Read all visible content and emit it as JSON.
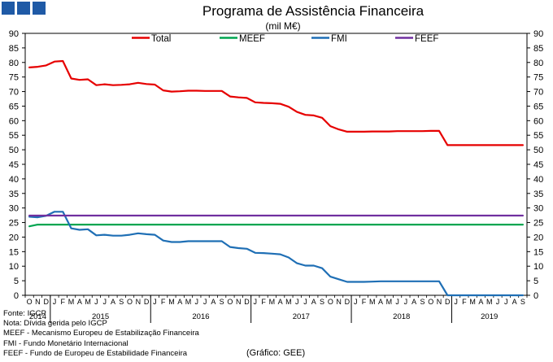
{
  "logo": "logo-squares",
  "title": "Programa de Assistência Financeira",
  "subtitle": "(mil M€)",
  "notes": [
    "Fonte: IGCP",
    "Nota: Dívida gerida pelo IGCP",
    "MEEF - Mecanismo Europeu de Estabilização Financeira",
    "FMI - Fundo Monetário Internacional",
    "FEEF - Fundo de Europeu de Estabilidade Financeira"
  ],
  "credit": "(Gráfico: GEE)",
  "chart_data": {
    "type": "line",
    "ylim": [
      0,
      90
    ],
    "yticks": [
      0,
      5,
      10,
      15,
      20,
      25,
      30,
      35,
      40,
      45,
      50,
      55,
      60,
      65,
      70,
      75,
      80,
      85,
      90
    ],
    "month_labels": [
      "O",
      "N",
      "D",
      "J",
      "F",
      "M",
      "A",
      "M",
      "J",
      "J",
      "A",
      "S",
      "O",
      "N",
      "D",
      "J",
      "F",
      "M",
      "A",
      "M",
      "J",
      "J",
      "A",
      "S",
      "O",
      "N",
      "D",
      "J",
      "F",
      "M",
      "A",
      "M",
      "J",
      "J",
      "A",
      "S",
      "O",
      "N",
      "D",
      "J",
      "F",
      "M",
      "A",
      "M",
      "J",
      "J",
      "A",
      "S",
      "O",
      "N",
      "D",
      "J",
      "F",
      "M",
      "A",
      "M",
      "J",
      "J",
      "A",
      "S"
    ],
    "year_labels": [
      {
        "label": "2014",
        "first_month": 0,
        "last_month": 2
      },
      {
        "label": "2015",
        "first_month": 3,
        "last_month": 14
      },
      {
        "label": "2016",
        "first_month": 15,
        "last_month": 26
      },
      {
        "label": "2017",
        "first_month": 27,
        "last_month": 38
      },
      {
        "label": "2018",
        "first_month": 39,
        "last_month": 50
      },
      {
        "label": "2019",
        "first_month": 51,
        "last_month": 59
      }
    ],
    "grid": false,
    "legend": "top",
    "series": [
      {
        "name": "Total",
        "color": "#e60000",
        "values": [
          78.3,
          78.5,
          79.0,
          80.3,
          80.5,
          74.5,
          74.0,
          74.2,
          72.2,
          72.5,
          72.2,
          72.3,
          72.5,
          73.0,
          72.6,
          72.4,
          70.4,
          70.0,
          70.1,
          70.3,
          70.3,
          70.2,
          70.2,
          70.2,
          68.3,
          68.0,
          67.8,
          66.3,
          66.1,
          66.0,
          65.8,
          64.8,
          63.0,
          62.0,
          61.8,
          61.0,
          58.1,
          57.0,
          56.2,
          56.2,
          56.2,
          56.3,
          56.3,
          56.3,
          56.4,
          56.4,
          56.4,
          56.4,
          56.5,
          56.5,
          51.6,
          51.6,
          51.6,
          51.6,
          51.6,
          51.6,
          51.6,
          51.6,
          51.6,
          51.6
        ]
      },
      {
        "name": "MEEF",
        "color": "#00a550",
        "values": [
          23.7,
          24.3,
          24.3,
          24.3,
          24.3,
          24.3,
          24.3,
          24.3,
          24.3,
          24.3,
          24.3,
          24.3,
          24.3,
          24.3,
          24.3,
          24.3,
          24.3,
          24.3,
          24.3,
          24.3,
          24.3,
          24.3,
          24.3,
          24.3,
          24.3,
          24.3,
          24.3,
          24.3,
          24.3,
          24.3,
          24.3,
          24.3,
          24.3,
          24.3,
          24.3,
          24.3,
          24.3,
          24.3,
          24.3,
          24.3,
          24.3,
          24.3,
          24.3,
          24.3,
          24.3,
          24.3,
          24.3,
          24.3,
          24.3,
          24.3,
          24.3,
          24.3,
          24.3,
          24.3,
          24.3,
          24.3,
          24.3,
          24.3,
          24.3,
          24.3
        ]
      },
      {
        "name": "FMI",
        "color": "#1f6fb5",
        "values": [
          27.0,
          26.8,
          27.3,
          28.7,
          28.7,
          23.0,
          22.5,
          22.7,
          20.6,
          20.8,
          20.5,
          20.5,
          20.8,
          21.3,
          21.0,
          20.8,
          18.8,
          18.3,
          18.3,
          18.6,
          18.6,
          18.6,
          18.6,
          18.6,
          16.6,
          16.2,
          16.0,
          14.6,
          14.5,
          14.3,
          14.1,
          13.0,
          11.0,
          10.2,
          10.2,
          9.3,
          6.4,
          5.5,
          4.6,
          4.6,
          4.6,
          4.7,
          4.8,
          4.8,
          4.8,
          4.8,
          4.8,
          4.8,
          4.8,
          4.8,
          0,
          0,
          0,
          0,
          0,
          0,
          0,
          0,
          0,
          0
        ]
      },
      {
        "name": "FEEF",
        "color": "#7030a0",
        "values": [
          27.4,
          27.4,
          27.4,
          27.4,
          27.4,
          27.4,
          27.4,
          27.4,
          27.4,
          27.4,
          27.4,
          27.4,
          27.4,
          27.4,
          27.4,
          27.4,
          27.4,
          27.4,
          27.4,
          27.4,
          27.4,
          27.4,
          27.4,
          27.4,
          27.4,
          27.4,
          27.4,
          27.4,
          27.4,
          27.4,
          27.4,
          27.4,
          27.4,
          27.4,
          27.4,
          27.4,
          27.4,
          27.4,
          27.4,
          27.4,
          27.4,
          27.4,
          27.4,
          27.4,
          27.4,
          27.4,
          27.4,
          27.4,
          27.4,
          27.4,
          27.4,
          27.4,
          27.4,
          27.4,
          27.4,
          27.4,
          27.4,
          27.4,
          27.4,
          27.4
        ]
      }
    ]
  }
}
